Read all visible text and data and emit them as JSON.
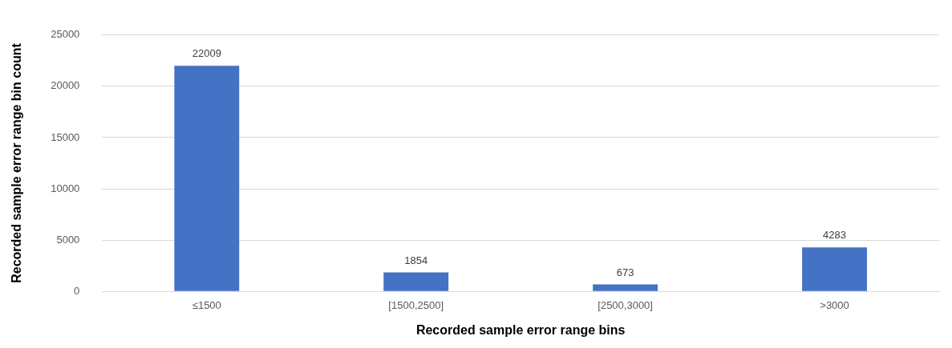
{
  "chart_data": {
    "type": "bar",
    "xlabel": "Recorded sample error range bins",
    "ylabel": "Recorded sample error range bin count",
    "categories": [
      "≤1500",
      "[1500,2500]",
      "[2500,3000]",
      ">3000"
    ],
    "values": [
      22009,
      1854,
      673,
      4283
    ],
    "color": "#4472c4",
    "ylim": [
      0,
      25000
    ],
    "yticks": [
      0,
      5000,
      10000,
      15000,
      20000,
      25000
    ],
    "grid": "y",
    "data_labels": true
  }
}
